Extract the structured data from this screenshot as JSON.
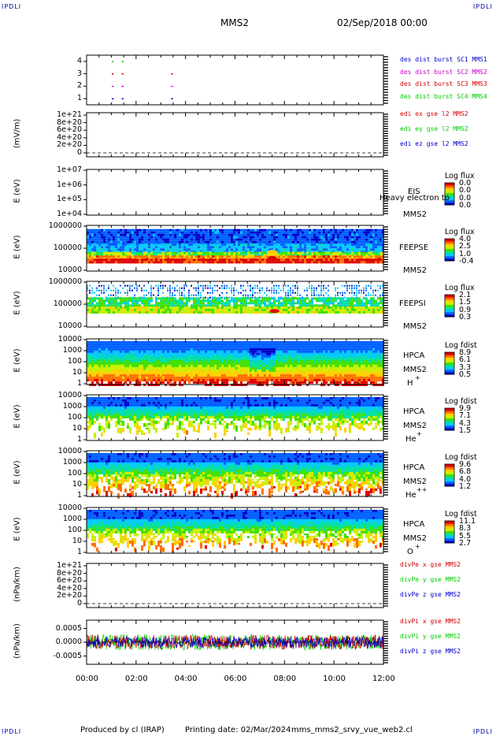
{
  "header": {
    "corner_left_top": "IPDLI",
    "corner_right_top": "IPDLI",
    "corner_left_bottom": "IPDLI",
    "corner_right_bottom": "IPDLI",
    "spacecraft": "MMS2",
    "datetime": "02/Sep/2018 00:00"
  },
  "footer": {
    "produced": "Produced by cl (IRAP)",
    "printing": "Printing date: 02/Mar/2024",
    "script": "mms_mms2_srvy_vue_web2.cl"
  },
  "colors": {
    "red": "#d00000",
    "magenta": "#cc00cc",
    "green": "#00cc00",
    "blue": "#0000cc",
    "spectrogram_scale": [
      "#0000c8",
      "#0060ff",
      "#00c8ff",
      "#00e0a0",
      "#40e000",
      "#c8f000",
      "#ffd000",
      "#ff7000",
      "#e00000"
    ]
  },
  "chart_data": [
    {
      "type": "scatter",
      "id": "burst",
      "y_ticks": [
        "4",
        "3",
        "2",
        "1"
      ],
      "ylim": [
        0.5,
        4.5
      ],
      "legend": [
        {
          "label": "des dist burst SC1 MMS1",
          "color": "#0000cc"
        },
        {
          "label": "des dist burst SC2 MMS2",
          "color": "#cc00cc"
        },
        {
          "label": "des dist burst SC3 MMS3",
          "color": "#d00000"
        },
        {
          "label": "des dist burst SC4 MMS4",
          "color": "#00cc00"
        }
      ],
      "series": [
        {
          "name": "des dist burst SC4 MMS4",
          "y": 4,
          "x": [
            1.05,
            1.45
          ]
        },
        {
          "name": "des dist burst SC3 MMS3",
          "y": 3,
          "x": [
            1.05,
            1.45,
            3.45
          ]
        },
        {
          "name": "des dist burst SC2 MMS2",
          "y": 2,
          "x": [
            1.05,
            1.45,
            3.45
          ]
        },
        {
          "name": "des dist burst SC1 MMS1",
          "y": 1,
          "x": [
            1.05,
            1.45,
            3.45
          ]
        }
      ]
    },
    {
      "type": "line",
      "id": "edi",
      "ytitle": "(mV/m)",
      "y_ticks": [
        "1e+21",
        "8e+20",
        "6e+20",
        "4e+20",
        "2e+20",
        "0"
      ],
      "ylim": [
        0,
        1e+21
      ],
      "legend": [
        {
          "label": "edi ex gse l2 MMS2",
          "color": "#d00000"
        },
        {
          "label": "edi ey gse l2 MMS2",
          "color": "#00cc00"
        },
        {
          "label": "edi ez gse l2 MMS2",
          "color": "#0000cc"
        }
      ]
    },
    {
      "type": "heatmap",
      "id": "eis",
      "ytitle": "E (eV)",
      "y_ticks": [
        "1e+07",
        "1e+06",
        "1e+05",
        "1e+04"
      ],
      "labels": [
        "EIS",
        "Heavy electron to",
        "MMS2"
      ],
      "colorbar_title": "Log flux",
      "colorbar_ticks": [
        "0.0",
        "0.0",
        "0.0",
        "0.0"
      ]
    },
    {
      "type": "heatmap",
      "id": "feepse",
      "ytitle": "E (eV)",
      "y_ticks": [
        "1000000",
        "100000",
        "10000"
      ],
      "labels": [
        "FEEPSE",
        "MMS2"
      ],
      "colorbar_title": "Log flux",
      "colorbar_ticks": [
        "4.0",
        "2.5",
        "1.0",
        "-0.4"
      ]
    },
    {
      "type": "heatmap",
      "id": "feepsi",
      "ytitle": "E (eV)",
      "y_ticks": [
        "1000000",
        "100000",
        "10000"
      ],
      "labels": [
        "FEEPSI",
        "MMS2"
      ],
      "colorbar_title": "Log flux",
      "colorbar_ticks": [
        "2.1",
        "1.5",
        "0.9",
        "0.3"
      ]
    },
    {
      "type": "heatmap",
      "id": "hpca_h",
      "ytitle": "E (eV)",
      "y_ticks": [
        "10000",
        "1000",
        "100",
        "10",
        "1"
      ],
      "labels": [
        "HPCA",
        "MMS2",
        "H",
        "+"
      ],
      "colorbar_title": "Log fdist",
      "colorbar_ticks": [
        "8.9",
        "6.1",
        "3.3",
        "0.5"
      ]
    },
    {
      "type": "heatmap",
      "id": "hpca_he",
      "ytitle": "E (eV)",
      "y_ticks": [
        "10000",
        "1000",
        "100",
        "10",
        "1"
      ],
      "labels": [
        "HPCA",
        "MMS2",
        "He",
        "+"
      ],
      "colorbar_title": "Log fdist",
      "colorbar_ticks": [
        "9.9",
        "7.1",
        "4.3",
        "1.5"
      ]
    },
    {
      "type": "heatmap",
      "id": "hpca_hepp",
      "ytitle": "E (eV)",
      "y_ticks": [
        "10000",
        "1000",
        "100",
        "10",
        "1"
      ],
      "labels": [
        "HPCA",
        "MMS2",
        "He",
        "++"
      ],
      "colorbar_title": "Log fdist",
      "colorbar_ticks": [
        "9.6",
        "6.8",
        "4.0",
        "1.2"
      ]
    },
    {
      "type": "heatmap",
      "id": "hpca_o",
      "ytitle": "E (eV)",
      "y_ticks": [
        "10000",
        "1000",
        "100",
        "10",
        "1"
      ],
      "labels": [
        "HPCA",
        "MMS2",
        "O",
        "+"
      ],
      "colorbar_title": "Log fdist",
      "colorbar_ticks": [
        "11.1",
        "8.3",
        "5.5",
        "2.7"
      ]
    },
    {
      "type": "line",
      "id": "divpe",
      "ytitle": "(nPa/km)",
      "y_ticks": [
        "1e+21",
        "8e+20",
        "6e+20",
        "4e+20",
        "2e+20",
        "0"
      ],
      "ylim": [
        0,
        1e+21
      ],
      "legend": [
        {
          "label": "divPe x gse MMS2",
          "color": "#d00000"
        },
        {
          "label": "divPe y gse MMS2",
          "color": "#00cc00"
        },
        {
          "label": "divPe z gse MMS2",
          "color": "#0000cc"
        }
      ]
    },
    {
      "type": "line",
      "id": "divpi",
      "ytitle": "(nPa/km)",
      "y_ticks": [
        "0.0005",
        "0.0000",
        "-0.0005"
      ],
      "ylim": [
        -0.0008,
        0.0008
      ],
      "legend": [
        {
          "label": "divPi x gse MMS2",
          "color": "#d00000"
        },
        {
          "label": "divPi y gse MMS2",
          "color": "#00cc00"
        },
        {
          "label": "divPi z gse MMS2",
          "color": "#0000cc"
        }
      ]
    }
  ],
  "x_axis": {
    "ticks": [
      "00:00",
      "02:00",
      "04:00",
      "06:00",
      "08:00",
      "10:00",
      "12:00"
    ],
    "range_hours": [
      0,
      12
    ]
  }
}
